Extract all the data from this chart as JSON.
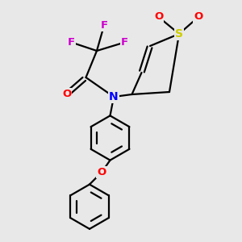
{
  "background_color": "#e8e8e8",
  "bond_color": "#000000",
  "atom_colors": {
    "F": "#cc00cc",
    "O": "#ff0000",
    "N": "#0000ff",
    "S": "#cccc00",
    "C": "#000000"
  },
  "figsize": [
    3.0,
    3.0
  ],
  "dpi": 100,
  "xlim": [
    0,
    10
  ],
  "ylim": [
    0,
    10
  ],
  "bond_lw": 1.6,
  "font_size_atom": 9.5
}
